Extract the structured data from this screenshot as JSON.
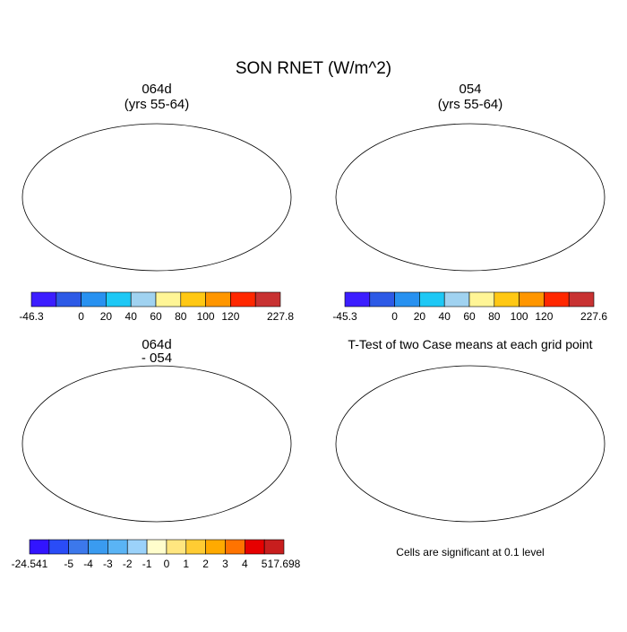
{
  "title": "SON RNET (W/m^2)",
  "panels": [
    {
      "title": "064d",
      "subtitle": "(yrs 55-64)",
      "colorbar": {
        "colors": [
          "#3c1eff",
          "#2d5ae6",
          "#2891f0",
          "#1ec8f5",
          "#a0d2f0",
          "#fff596",
          "#ffc814",
          "#ff9600",
          "#ff2800",
          "#c83232"
        ],
        "labels": [
          "-46.3",
          null,
          "0",
          "20",
          "40",
          "60",
          "80",
          "100",
          "120",
          null,
          "227.8"
        ]
      }
    },
    {
      "title": "054",
      "subtitle": "(yrs 55-64)",
      "colorbar": {
        "colors": [
          "#3c1eff",
          "#2d5ae6",
          "#2891f0",
          "#1ec8f5",
          "#a0d2f0",
          "#fff596",
          "#ffc814",
          "#ff9600",
          "#ff2800",
          "#c83232"
        ],
        "labels": [
          "-45.3",
          null,
          "0",
          "20",
          "40",
          "60",
          "80",
          "100",
          "120",
          null,
          "227.6"
        ]
      }
    },
    {
      "title": "064d",
      "subtitle": "- 054",
      "colorbar": {
        "colors": [
          "#3214ff",
          "#2a4cf7",
          "#3c78eb",
          "#3a9bf0",
          "#5ab4f5",
          "#9bd2fa",
          "#fffdcc",
          "#ffe680",
          "#ffcc33",
          "#ffaa00",
          "#ff7300",
          "#e60000",
          "#c81e1e"
        ],
        "labels": [
          "-24.541",
          null,
          "-5",
          "-4",
          "-3",
          "-2",
          "-1",
          "0",
          "1",
          "2",
          "3",
          "4",
          "5",
          "17.698"
        ]
      }
    },
    {
      "title": "T-Test of two Case means at each grid point",
      "note": "Cells are significant at 0.1 level"
    }
  ]
}
